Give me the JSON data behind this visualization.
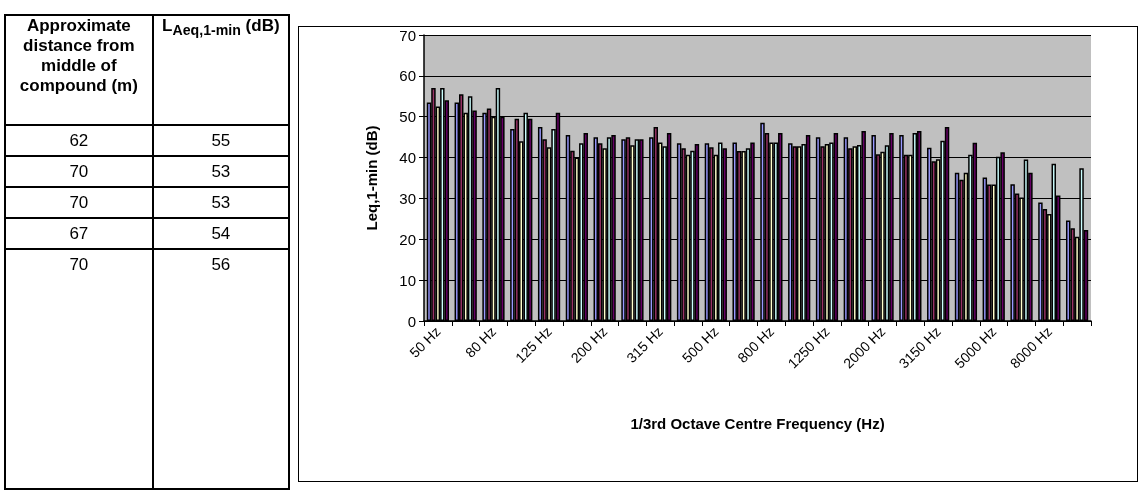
{
  "chart_data": [
    {
      "type": "other",
      "annotations": [
        "Approximate distance from middle of compound (m)",
        "L$_{Aeq,1-min}$ (dB)",
        "62",
        "55",
        "70",
        "53",
        "70",
        "53",
        "67",
        "54",
        "70",
        "56"
      ]
    },
    {
      "type": "bar",
      "xlabel": "1/3rd Octave Centre Frequency (Hz)",
      "ylabel": "Leq,1-min (dB)",
      "categories": [
        "50 Hz",
        null,
        "80 Hz",
        null,
        "125 Hz",
        null,
        "200 Hz",
        null,
        "315 Hz",
        null,
        "500 Hz",
        null,
        "800 Hz",
        null,
        "1250 Hz",
        null,
        "2000 Hz",
        null,
        "3150 Hz",
        null,
        "5000 Hz",
        null,
        "8000 Hz",
        null
      ],
      "series": [
        {
          "color": "#9999ff",
          "values": [
            53.5,
            53.5,
            51,
            47,
            47.5,
            45.5,
            45,
            44.5,
            45,
            43.5,
            43.5,
            43.7,
            48.5,
            43.5,
            45,
            45,
            45.5,
            45.5,
            42.4,
            36.3,
            35.1,
            33.5,
            29,
            24.6
          ]
        },
        {
          "color": "#993366",
          "values": [
            57,
            55.5,
            52,
            49.5,
            44.5,
            41.7,
            43.5,
            45,
            47.5,
            42.3,
            42.5,
            41.6,
            46,
            42.8,
            42.8,
            42.3,
            40.8,
            40.7,
            39.1,
            34.6,
            33.4,
            31.2,
            27.4,
            22.7
          ]
        },
        {
          "color": "#ffffcc",
          "values": [
            52.5,
            51,
            50,
            44,
            42.5,
            40,
            42.3,
            43,
            43.7,
            40.7,
            40.7,
            41.6,
            43.7,
            42.8,
            43.3,
            42.8,
            41.4,
            40.7,
            39.6,
            36.3,
            33.4,
            30.2,
            26.2,
            20.6
          ]
        },
        {
          "color": "#ccffff",
          "values": [
            57,
            55,
            57,
            51,
            47,
            43.5,
            45,
            44.5,
            42.8,
            41.7,
            43.7,
            42.3,
            43.7,
            43.3,
            43.7,
            43.1,
            43,
            46,
            44.1,
            40.7,
            40.2,
            39.5,
            38.5,
            37.4
          ]
        },
        {
          "color": "#660066",
          "values": [
            54,
            51.5,
            50,
            49.5,
            51,
            46,
            45.5,
            44.5,
            46,
            43.3,
            42.3,
            43.7,
            46,
            45.5,
            46,
            46.5,
            46,
            46.5,
            47.5,
            43.6,
            41.3,
            36.3,
            30.7,
            22.3
          ]
        }
      ],
      "ylim": [
        0,
        70
      ],
      "yticks": [
        0,
        10,
        20,
        30,
        40,
        50,
        60,
        70
      ],
      "grid": "y"
    }
  ]
}
